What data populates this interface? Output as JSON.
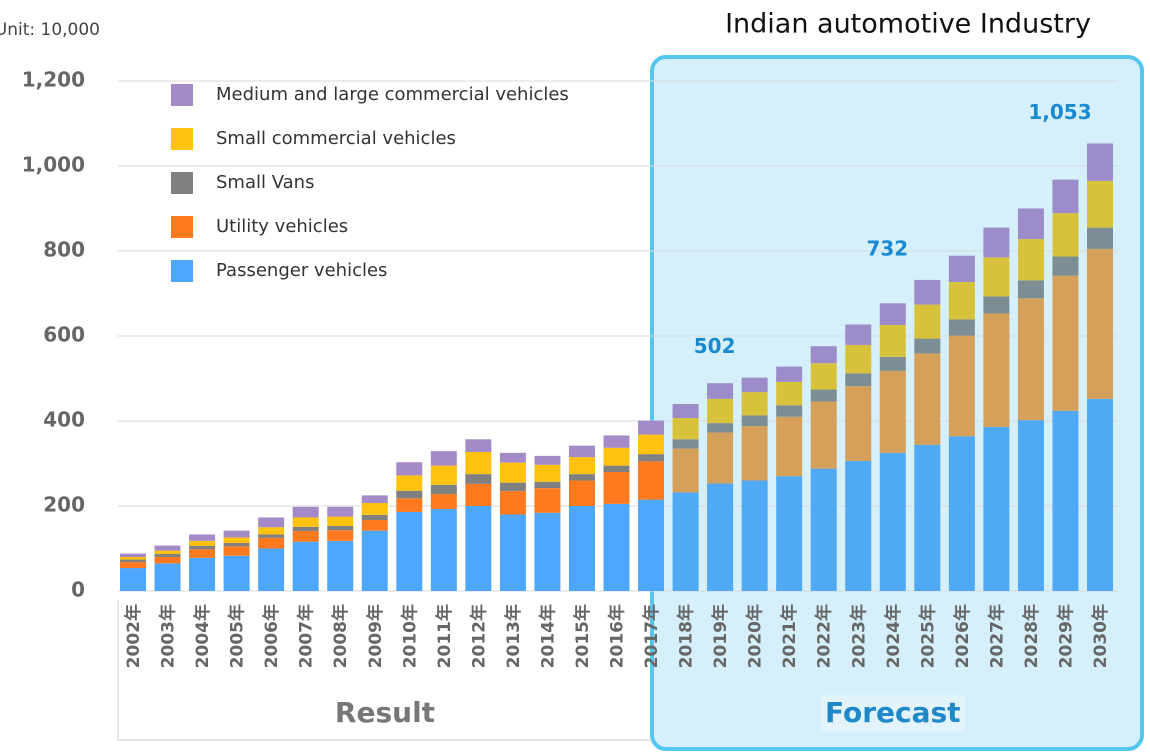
{
  "chart_data": {
    "type": "stacked_bar",
    "title": "Indian automotive Industry",
    "unit_label": "Unit: 10,000",
    "categories": [
      "2002年",
      "2003年",
      "2004年",
      "2005年",
      "2006年",
      "2007年",
      "2008年",
      "2009年",
      "2010年",
      "2011年",
      "2012年",
      "2013年",
      "2014年",
      "2015年",
      "2016年",
      "2017年",
      "2018年",
      "2019年",
      "2020年",
      "2021年",
      "2022年",
      "2023年",
      "2024年",
      "2025年",
      "2026年",
      "2027年",
      "2028年",
      "2029年",
      "2030年"
    ],
    "series": [
      {
        "name": "Passenger vehicles",
        "color": "#4ea7ff",
        "forecast_color": "#4fa9f5",
        "values": [
          54,
          65,
          78,
          83,
          100,
          116,
          118,
          142,
          186,
          193,
          200,
          180,
          184,
          200,
          205,
          215,
          232,
          253,
          260,
          270,
          288,
          306,
          325,
          344,
          364,
          386,
          402,
          424,
          452
        ]
      },
      {
        "name": "Utility vehicles",
        "color": "#ff7a1f",
        "forecast_color": "#d4a05a",
        "values": [
          14,
          15,
          20,
          22,
          25,
          25,
          25,
          25,
          32,
          35,
          52,
          55,
          58,
          60,
          75,
          90,
          103,
          120,
          128,
          140,
          158,
          176,
          193,
          215,
          237,
          267,
          287,
          318,
          353
        ]
      },
      {
        "name": "Small Vans",
        "color": "#808080",
        "forecast_color": "#7c8e94",
        "values": [
          6,
          7,
          8,
          8,
          8,
          10,
          10,
          12,
          18,
          22,
          23,
          20,
          15,
          15,
          15,
          17,
          22,
          22,
          25,
          27,
          28,
          30,
          33,
          35,
          38,
          40,
          42,
          45,
          50
        ]
      },
      {
        "name": "Small commercial vehicles",
        "color": "#ffc20e",
        "forecast_color": "#d8c23c",
        "values": [
          6,
          8,
          12,
          13,
          17,
          22,
          22,
          28,
          36,
          45,
          52,
          47,
          40,
          40,
          42,
          46,
          50,
          57,
          55,
          55,
          62,
          67,
          75,
          80,
          88,
          92,
          97,
          102,
          110
        ]
      },
      {
        "name": "Medium and large commercial vehicles",
        "color": "#a48bc8",
        "forecast_color": "#9c8cc9",
        "values": [
          8,
          12,
          15,
          16,
          23,
          25,
          23,
          18,
          31,
          34,
          30,
          23,
          21,
          27,
          29,
          33,
          33,
          37,
          34,
          36,
          40,
          48,
          51,
          58,
          62,
          70,
          72,
          79,
          88
        ]
      }
    ],
    "total_labels": [
      {
        "category": "2020年",
        "value": 502
      },
      {
        "category": "2025年",
        "value": 732
      },
      {
        "category": "2030年",
        "value": 1053,
        "label": "1,053"
      }
    ],
    "groups": [
      {
        "label": "Result",
        "start": "2002年",
        "end": "2017年"
      },
      {
        "label": "Forecast",
        "start": "2018年",
        "end": "2030年"
      }
    ],
    "ylim": [
      0,
      1200
    ],
    "yticks": [
      0,
      200,
      400,
      600,
      800,
      {
        "value": 1000,
        "label": "1,000"
      },
      {
        "value": 1200,
        "label": "1,200"
      }
    ],
    "grid": true
  }
}
